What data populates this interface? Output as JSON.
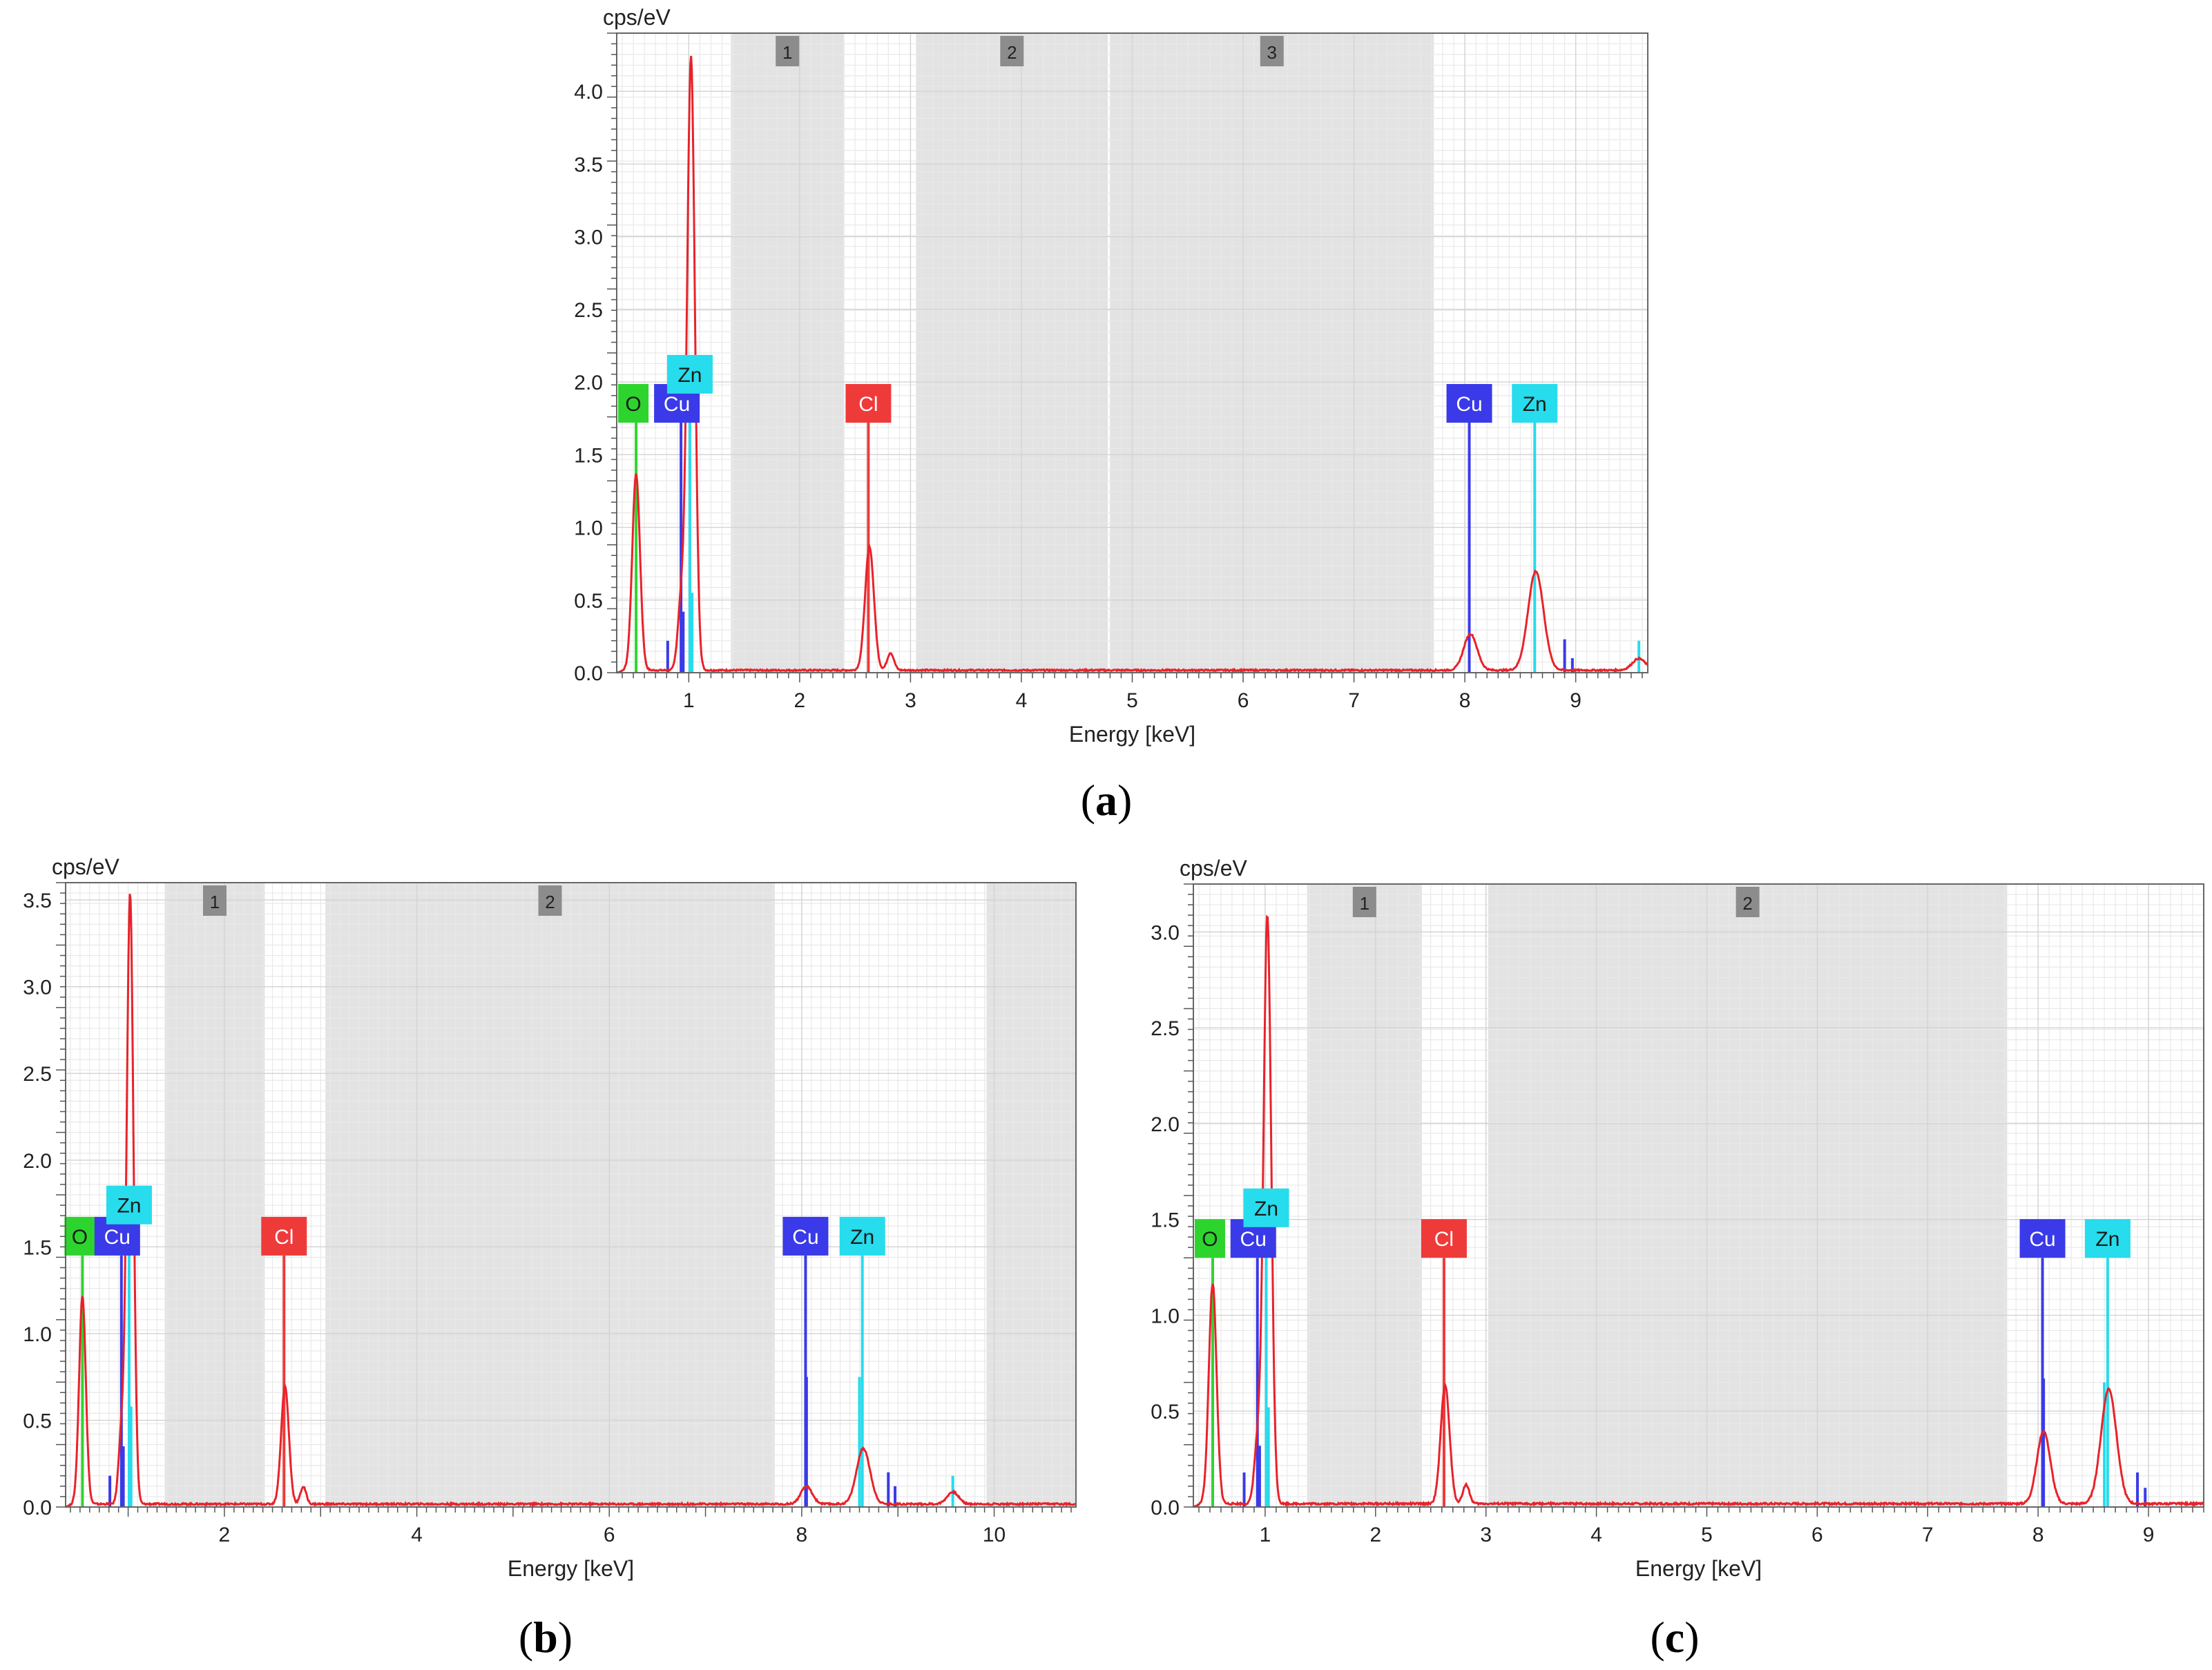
{
  "colors": {
    "spectrum": "#e8222a",
    "O": "#2ed42e",
    "Cu": "#3a3ae8",
    "Zn": "#27dcec",
    "Cl": "#ef3a3a",
    "region": "#e3e3e3",
    "region_tag": "#8c8c8c",
    "grid_minor": "#e9e9e9",
    "grid_major": "#d3d3d3"
  },
  "chart_data": [
    {
      "type": "line",
      "panel": "a",
      "caption_prefix": "(",
      "caption_letter": "a",
      "caption_suffix": ")",
      "ylabel": "cps/eV",
      "xlabel": "Energy [keV]",
      "xlim": [
        0.35,
        9.65
      ],
      "ylim": [
        0,
        4.4
      ],
      "xticks": [
        1,
        2,
        3,
        4,
        5,
        6,
        7,
        8,
        9
      ],
      "yticks": [
        0.0,
        0.5,
        1.0,
        1.5,
        2.0,
        2.5,
        3.0,
        3.5,
        4.0
      ],
      "ytick_labels": [
        "0.0",
        "0.5",
        "1.0",
        "1.5",
        "2.0",
        "2.5",
        "3.0",
        "3.5",
        "4.0"
      ],
      "regions": [
        {
          "label": "1",
          "x0": 1.38,
          "x1": 2.4
        },
        {
          "label": "2",
          "x0": 3.05,
          "x1": 4.78
        },
        {
          "label": "3",
          "x0": 4.8,
          "x1": 7.72
        }
      ],
      "spectrum_peaks": [
        {
          "energy": 0.525,
          "height": 1.35,
          "width": 0.035
        },
        {
          "energy": 0.93,
          "height": 0.45,
          "width": 0.03
        },
        {
          "energy": 1.02,
          "height": 4.22,
          "width": 0.035
        },
        {
          "energy": 2.63,
          "height": 0.85,
          "width": 0.04
        },
        {
          "energy": 2.82,
          "height": 0.12,
          "width": 0.03
        },
        {
          "energy": 8.05,
          "height": 0.25,
          "width": 0.06
        },
        {
          "energy": 8.64,
          "height": 0.68,
          "width": 0.07
        },
        {
          "energy": 9.57,
          "height": 0.08,
          "width": 0.06
        }
      ],
      "element_lines": [
        {
          "element": "O",
          "energy": 0.525,
          "height": 1.72,
          "color_key": "O"
        },
        {
          "element": "Cu",
          "energy": 0.93,
          "height": 1.72,
          "color_key": "Cu"
        },
        {
          "element": "Zn",
          "energy": 1.01,
          "height": 1.92,
          "color_key": "Zn"
        },
        {
          "element": "Cl",
          "energy": 2.62,
          "height": 1.72,
          "color_key": "Cl"
        },
        {
          "element": "Cu",
          "energy": 8.04,
          "height": 1.72,
          "color_key": "Cu"
        },
        {
          "element": "Zn",
          "energy": 8.63,
          "height": 1.72,
          "color_key": "Zn"
        }
      ],
      "minor_lines": [
        {
          "energy": 0.81,
          "height": 0.22,
          "color_key": "Cu"
        },
        {
          "energy": 0.95,
          "height": 0.42,
          "color_key": "Cu"
        },
        {
          "energy": 1.03,
          "height": 0.55,
          "color_key": "Zn"
        },
        {
          "energy": 8.9,
          "height": 0.23,
          "color_key": "Cu"
        },
        {
          "energy": 8.97,
          "height": 0.1,
          "color_key": "Cu"
        },
        {
          "energy": 9.57,
          "height": 0.22,
          "color_key": "Zn"
        }
      ]
    },
    {
      "type": "line",
      "panel": "b",
      "caption_prefix": "(",
      "caption_letter": "b",
      "caption_suffix": ")",
      "ylabel": "cps/eV",
      "xlabel": "Energy [keV]",
      "xlim": [
        0.35,
        10.85
      ],
      "ylim": [
        0,
        3.6
      ],
      "xticks": [
        2,
        4,
        6,
        8,
        10
      ],
      "yticks": [
        0.0,
        0.5,
        1.0,
        1.5,
        2.0,
        2.5,
        3.0,
        3.5
      ],
      "ytick_labels": [
        "0.0",
        "0.5",
        "1.0",
        "1.5",
        "2.0",
        "2.5",
        "3.0",
        "3.5"
      ],
      "regions": [
        {
          "label": "1",
          "x0": 1.38,
          "x1": 2.42
        },
        {
          "label": "2",
          "x0": 3.05,
          "x1": 7.72
        },
        {
          "label": "",
          "x0": 9.92,
          "x1": 10.85
        }
      ],
      "spectrum_peaks": [
        {
          "energy": 0.525,
          "height": 1.2,
          "width": 0.035
        },
        {
          "energy": 0.93,
          "height": 0.4,
          "width": 0.03
        },
        {
          "energy": 1.02,
          "height": 3.52,
          "width": 0.035
        },
        {
          "energy": 2.63,
          "height": 0.68,
          "width": 0.04
        },
        {
          "energy": 2.82,
          "height": 0.1,
          "width": 0.03
        },
        {
          "energy": 8.05,
          "height": 0.1,
          "width": 0.06
        },
        {
          "energy": 8.64,
          "height": 0.32,
          "width": 0.07
        },
        {
          "energy": 9.57,
          "height": 0.07,
          "width": 0.06
        }
      ],
      "element_lines": [
        {
          "element": "O",
          "energy": 0.525,
          "height": 1.45,
          "color_key": "O"
        },
        {
          "element": "Cu",
          "energy": 0.93,
          "height": 1.45,
          "color_key": "Cu"
        },
        {
          "element": "Zn",
          "energy": 1.01,
          "height": 1.63,
          "color_key": "Zn"
        },
        {
          "element": "Cl",
          "energy": 2.62,
          "height": 1.45,
          "color_key": "Cl"
        },
        {
          "element": "Cu",
          "energy": 8.04,
          "height": 1.45,
          "color_key": "Cu"
        },
        {
          "element": "Zn",
          "energy": 8.63,
          "height": 1.45,
          "color_key": "Zn"
        }
      ],
      "minor_lines": [
        {
          "energy": 0.81,
          "height": 0.18,
          "color_key": "Cu"
        },
        {
          "energy": 0.95,
          "height": 0.35,
          "color_key": "Cu"
        },
        {
          "energy": 1.03,
          "height": 0.58,
          "color_key": "Zn"
        },
        {
          "energy": 8.05,
          "height": 0.75,
          "color_key": "Cu"
        },
        {
          "energy": 8.6,
          "height": 0.75,
          "color_key": "Zn"
        },
        {
          "energy": 8.9,
          "height": 0.2,
          "color_key": "Cu"
        },
        {
          "energy": 8.97,
          "height": 0.12,
          "color_key": "Cu"
        },
        {
          "energy": 9.57,
          "height": 0.18,
          "color_key": "Zn"
        }
      ]
    },
    {
      "type": "line",
      "panel": "c",
      "caption_prefix": "(",
      "caption_letter": "c",
      "caption_suffix": ")",
      "ylabel": "cps/eV",
      "xlabel": "Energy [keV]",
      "xlim": [
        0.35,
        9.5
      ],
      "ylim": [
        0,
        3.25
      ],
      "xticks": [
        1,
        2,
        3,
        4,
        5,
        6,
        7,
        8,
        9
      ],
      "yticks": [
        0.0,
        0.5,
        1.0,
        1.5,
        2.0,
        2.5,
        3.0
      ],
      "ytick_labels": [
        "0.0",
        "0.5",
        "1.0",
        "1.5",
        "2.0",
        "2.5",
        "3.0"
      ],
      "regions": [
        {
          "label": "1",
          "x0": 1.38,
          "x1": 2.42
        },
        {
          "label": "2",
          "x0": 3.02,
          "x1": 7.72
        }
      ],
      "spectrum_peaks": [
        {
          "energy": 0.525,
          "height": 1.15,
          "width": 0.035
        },
        {
          "energy": 0.93,
          "height": 0.3,
          "width": 0.03
        },
        {
          "energy": 1.02,
          "height": 3.07,
          "width": 0.035
        },
        {
          "energy": 2.63,
          "height": 0.62,
          "width": 0.04
        },
        {
          "energy": 2.82,
          "height": 0.1,
          "width": 0.03
        },
        {
          "energy": 8.05,
          "height": 0.38,
          "width": 0.06
        },
        {
          "energy": 8.64,
          "height": 0.6,
          "width": 0.07
        }
      ],
      "element_lines": [
        {
          "element": "O",
          "energy": 0.525,
          "height": 1.3,
          "color_key": "O"
        },
        {
          "element": "Cu",
          "energy": 0.93,
          "height": 1.3,
          "color_key": "Cu"
        },
        {
          "element": "Zn",
          "energy": 1.01,
          "height": 1.46,
          "color_key": "Zn"
        },
        {
          "element": "Cl",
          "energy": 2.62,
          "height": 1.3,
          "color_key": "Cl"
        },
        {
          "element": "Cu",
          "energy": 8.04,
          "height": 1.3,
          "color_key": "Cu"
        },
        {
          "element": "Zn",
          "energy": 8.63,
          "height": 1.3,
          "color_key": "Zn"
        }
      ],
      "minor_lines": [
        {
          "energy": 0.81,
          "height": 0.18,
          "color_key": "Cu"
        },
        {
          "energy": 0.95,
          "height": 0.32,
          "color_key": "Cu"
        },
        {
          "energy": 1.03,
          "height": 0.52,
          "color_key": "Zn"
        },
        {
          "energy": 8.05,
          "height": 0.67,
          "color_key": "Cu"
        },
        {
          "energy": 8.6,
          "height": 0.65,
          "color_key": "Zn"
        },
        {
          "energy": 8.9,
          "height": 0.18,
          "color_key": "Cu"
        },
        {
          "energy": 8.97,
          "height": 0.1,
          "color_key": "Cu"
        }
      ]
    }
  ]
}
